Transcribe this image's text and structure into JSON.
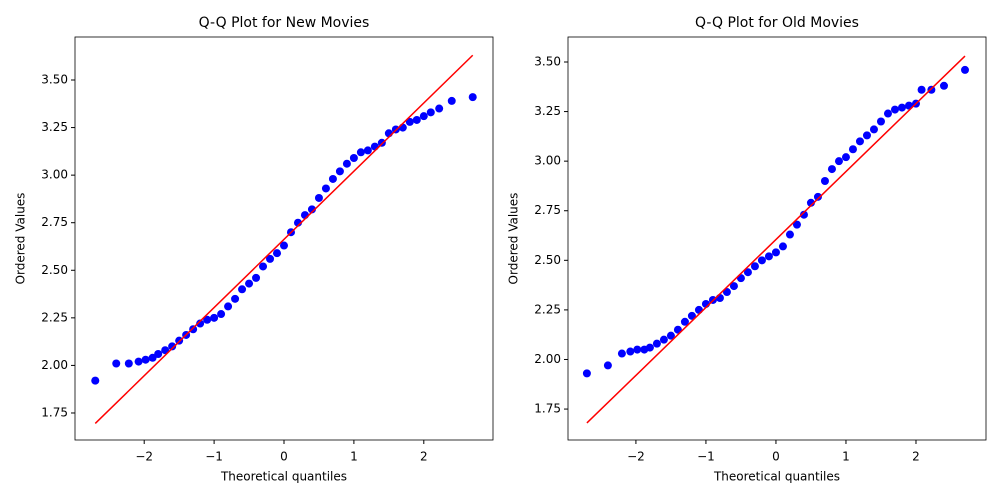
{
  "chart_data": [
    {
      "type": "scatter",
      "title": "Q-Q Plot for New Movies",
      "xlabel": "Theoretical quantiles",
      "ylabel": "Ordered Values",
      "xlim": [
        -2.99,
        2.99
      ],
      "ylim": [
        1.608,
        3.726
      ],
      "xticks": [
        {
          "value": -2,
          "label": "−2"
        },
        {
          "value": -1,
          "label": "−1"
        },
        0,
        1,
        2
      ],
      "yticks": [
        1.75,
        {
          "value": 2,
          "label": "2.00"
        },
        2.25,
        {
          "value": 2.5,
          "label": "2.50"
        },
        2.75,
        {
          "value": 3,
          "label": "3.00"
        },
        3.25,
        {
          "value": 3.5,
          "label": "3.50"
        }
      ],
      "color": "blue",
      "x": [
        -2.7,
        -2.4,
        -2.22,
        -2.08,
        -1.98,
        -1.88,
        -1.8,
        -1.7,
        -1.6,
        -1.5,
        -1.4,
        -1.3,
        -1.2,
        -1.1,
        -1.0,
        -0.9,
        -0.8,
        -0.7,
        -0.6,
        -0.5,
        -0.4,
        -0.3,
        -0.2,
        -0.1,
        0.0,
        0.1,
        0.2,
        0.3,
        0.4,
        0.5,
        0.6,
        0.7,
        0.8,
        0.9,
        1.0,
        1.1,
        1.2,
        1.3,
        1.4,
        1.5,
        1.6,
        1.7,
        1.8,
        1.9,
        2.0,
        2.1,
        2.22,
        2.4,
        2.7
      ],
      "values": [
        1.92,
        2.01,
        2.01,
        2.02,
        2.03,
        2.04,
        2.06,
        2.08,
        2.1,
        2.13,
        2.16,
        2.19,
        2.22,
        2.24,
        2.25,
        2.27,
        2.31,
        2.35,
        2.4,
        2.43,
        2.46,
        2.52,
        2.56,
        2.59,
        2.63,
        2.7,
        2.75,
        2.79,
        2.82,
        2.88,
        2.93,
        2.98,
        3.02,
        3.06,
        3.09,
        3.12,
        3.13,
        3.15,
        3.17,
        3.22,
        3.24,
        3.25,
        3.28,
        3.29,
        3.31,
        3.33,
        3.35,
        3.39,
        3.41
      ],
      "fit": {
        "color": "red",
        "x": [
          -2.7,
          2.7
        ],
        "values": [
          1.695,
          3.63
        ]
      }
    },
    {
      "type": "scatter",
      "title": "Q-Q Plot for Old Movies",
      "xlabel": "Theoretical quantiles",
      "ylabel": "Ordered Values",
      "xlim": [
        -2.97,
        3.0
      ],
      "ylim": [
        1.594,
        3.626
      ],
      "xticks": [
        {
          "value": -2,
          "label": "−2"
        },
        {
          "value": -1,
          "label": "−1"
        },
        0,
        1,
        2
      ],
      "yticks": [
        1.75,
        {
          "value": 2,
          "label": "2.00"
        },
        2.25,
        {
          "value": 2.5,
          "label": "2.50"
        },
        2.75,
        {
          "value": 3,
          "label": "3.00"
        },
        3.25,
        {
          "value": 3.5,
          "label": "3.50"
        }
      ],
      "color": "blue",
      "x": [
        -2.7,
        -2.4,
        -2.2,
        -2.08,
        -1.98,
        -1.88,
        -1.8,
        -1.7,
        -1.6,
        -1.5,
        -1.4,
        -1.3,
        -1.2,
        -1.1,
        -1.0,
        -0.9,
        -0.8,
        -0.7,
        -0.6,
        -0.5,
        -0.4,
        -0.3,
        -0.2,
        -0.1,
        0.0,
        0.1,
        0.2,
        0.3,
        0.4,
        0.5,
        0.6,
        0.7,
        0.8,
        0.9,
        1.0,
        1.1,
        1.2,
        1.3,
        1.4,
        1.5,
        1.6,
        1.7,
        1.8,
        1.9,
        2.0,
        2.08,
        2.22,
        2.4,
        2.7
      ],
      "values": [
        1.93,
        1.97,
        2.03,
        2.04,
        2.05,
        2.05,
        2.06,
        2.08,
        2.1,
        2.12,
        2.15,
        2.19,
        2.22,
        2.25,
        2.28,
        2.3,
        2.31,
        2.34,
        2.37,
        2.41,
        2.44,
        2.47,
        2.5,
        2.52,
        2.54,
        2.57,
        2.63,
        2.68,
        2.73,
        2.79,
        2.82,
        2.9,
        2.96,
        3.0,
        3.02,
        3.06,
        3.1,
        3.13,
        3.16,
        3.2,
        3.24,
        3.26,
        3.27,
        3.28,
        3.29,
        3.36,
        3.36,
        3.38,
        3.46
      ],
      "fit": {
        "color": "red",
        "x": [
          -2.7,
          2.7
        ],
        "values": [
          1.68,
          3.53
        ]
      }
    }
  ]
}
